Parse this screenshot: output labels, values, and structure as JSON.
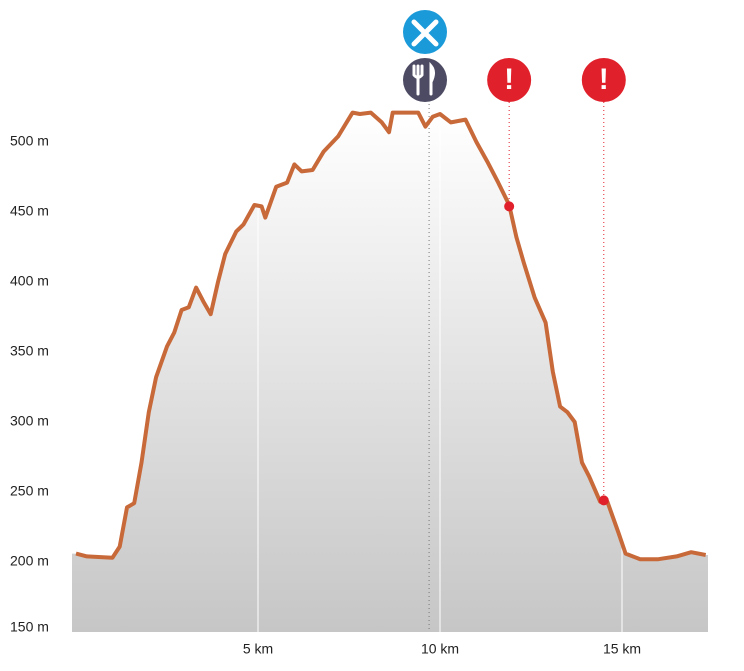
{
  "chart_data": {
    "type": "area",
    "x": [
      0,
      0.3,
      1.0,
      1.2,
      1.4,
      1.6,
      1.8,
      2.0,
      2.2,
      2.5,
      2.7,
      2.9,
      3.1,
      3.3,
      3.5,
      3.7,
      3.9,
      4.1,
      4.4,
      4.6,
      4.9,
      5.1,
      5.2,
      5.5,
      5.8,
      6.0,
      6.2,
      6.5,
      6.8,
      7.2,
      7.6,
      7.8,
      8.1,
      8.4,
      8.6,
      8.7,
      9.4,
      9.6,
      9.8,
      10.0,
      10.3,
      10.7,
      11.0,
      11.3,
      11.6,
      11.9,
      12.1,
      12.3,
      12.6,
      12.9,
      13.1,
      13.3,
      13.5,
      13.7,
      13.9,
      14.1,
      14.4,
      14.6,
      14.9,
      15.1,
      15.5,
      16.0,
      16.5,
      16.9,
      17.3
    ],
    "values": [
      206,
      204,
      203,
      211,
      239,
      242,
      271,
      307,
      332,
      354,
      364,
      380,
      382,
      396,
      386,
      377,
      400,
      420,
      436,
      441,
      455,
      454,
      446,
      468,
      471,
      484,
      479,
      480,
      493,
      504,
      521,
      520,
      521,
      514,
      507,
      521,
      521,
      511,
      518,
      520,
      514,
      516,
      500,
      486,
      471,
      455,
      432,
      414,
      389,
      371,
      336,
      311,
      307,
      300,
      271,
      261,
      243,
      243,
      221,
      206,
      202,
      202,
      204,
      207,
      205
    ],
    "color": "#c8693a",
    "xlim": [
      0,
      17.4
    ],
    "ylim": [
      150,
      530
    ],
    "xticks": [
      {
        "value": 5,
        "label": "5 km"
      },
      {
        "value": 10,
        "label": "10 km"
      },
      {
        "value": 15,
        "label": "15 km"
      }
    ],
    "yticks": [
      {
        "value": 150,
        "label": "150 m"
      },
      {
        "value": 200,
        "label": "200 m"
      },
      {
        "value": 250,
        "label": "250 m"
      },
      {
        "value": 300,
        "label": "300 m"
      },
      {
        "value": 350,
        "label": "350 m"
      },
      {
        "value": 400,
        "label": "400 m"
      },
      {
        "value": 450,
        "label": "450 m"
      },
      {
        "value": 500,
        "label": "500 m"
      }
    ],
    "pois": [
      {
        "x": 9.7
      },
      {
        "x": 11.9,
        "elevation": 454
      },
      {
        "x": 14.5,
        "elevation": 244
      }
    ],
    "warning_label": "!"
  }
}
